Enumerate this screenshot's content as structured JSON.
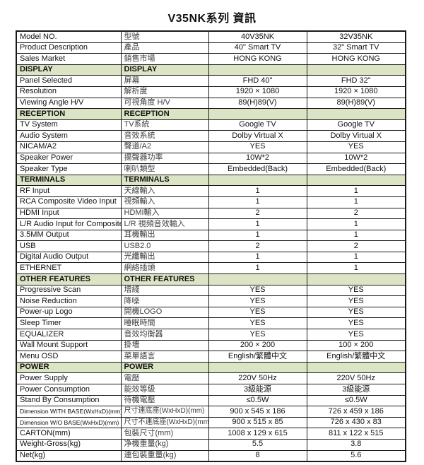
{
  "page": {
    "title": "V35NK系列 資訊"
  },
  "colors": {
    "section_row_background": "#dbe4c5",
    "border": "#1a1a1a",
    "text": "#111111"
  },
  "table": {
    "column_semantics": [
      "english_label",
      "chinese_label",
      "model_40V35NK_value",
      "model_32V35NK_value"
    ],
    "rows": [
      {
        "type": "data",
        "en": "Model NO.",
        "zh": "型號",
        "v40": "40V35NK",
        "v32": "32V35NK"
      },
      {
        "type": "data",
        "en": "Product Description",
        "zh": "產品",
        "v40": "40\" Smart TV",
        "v32": "32\" Smart TV"
      },
      {
        "type": "data",
        "en": "Sales Market",
        "zh": "銷售市場",
        "v40": "HONG KONG",
        "v32": "HONG KONG"
      },
      {
        "type": "section",
        "en": "DISPLAY",
        "zh": "DISPLAY",
        "v40": "",
        "v32": ""
      },
      {
        "type": "data",
        "en": "Panel Selected",
        "zh": "屏幕",
        "v40": "FHD 40\"",
        "v32": "FHD 32\""
      },
      {
        "type": "data",
        "en": "Resolution",
        "zh": "解析度",
        "v40": "1920 × 1080",
        "v32": "1920 × 1080"
      },
      {
        "type": "data",
        "en": "Viewing Angle H/V",
        "zh": "可視角度 H/V",
        "v40": "89(H)89(V)",
        "v32": "89(H)89(V)"
      },
      {
        "type": "section",
        "en": "RECEPTION",
        "zh": "RECEPTION",
        "v40": "",
        "v32": ""
      },
      {
        "type": "data",
        "en": "TV System",
        "zh": "TV系統",
        "v40": "Google TV",
        "v32": "Google TV"
      },
      {
        "type": "data",
        "en": "Audio System",
        "zh": "音效系統",
        "v40": "Dolby Virtual X",
        "v32": "Dolby Virtual X"
      },
      {
        "type": "data",
        "en": "NICAM/A2",
        "zh": "聲道/A2",
        "v40": "YES",
        "v32": "YES"
      },
      {
        "type": "data",
        "en": "Speaker Power",
        "zh": "揚聲器功率",
        "v40": "10W*2",
        "v32": "10W*2"
      },
      {
        "type": "data",
        "en": "Speaker Type",
        "zh": "喇叭類型",
        "v40": "Embedded(Back)",
        "v32": "Embedded(Back)"
      },
      {
        "type": "section",
        "en": "TERMINALS",
        "zh": "TERMINALS",
        "v40": "",
        "v32": ""
      },
      {
        "type": "data",
        "en": "RF Input",
        "zh": "天線輸入",
        "v40": "1",
        "v32": "1"
      },
      {
        "type": "data",
        "en": "RCA Composite Video Input",
        "zh": "視頻輸入",
        "v40": "1",
        "v32": "1"
      },
      {
        "type": "data",
        "en": "HDMI Input",
        "zh": "HDMI輸入",
        "v40": "2",
        "v32": "2"
      },
      {
        "type": "data",
        "en": "L/R Audio Input for Composite",
        "zh": "L/R 視頻音效輸入",
        "v40": "1",
        "v32": "1"
      },
      {
        "type": "data",
        "en": "3.5MM Output",
        "zh": "耳機輸出",
        "v40": "1",
        "v32": "1"
      },
      {
        "type": "data",
        "en": "USB",
        "zh": "USB2.0",
        "v40": "2",
        "v32": "2"
      },
      {
        "type": "data",
        "en": "Digital Audio Output",
        "zh": "光纖輸出",
        "v40": "1",
        "v32": "1"
      },
      {
        "type": "data",
        "en": "ETHERNET",
        "zh": "網絡插頭",
        "v40": "1",
        "v32": "1"
      },
      {
        "type": "section",
        "en": "OTHER FEATURES",
        "zh": "OTHER FEATURES",
        "v40": "",
        "v32": ""
      },
      {
        "type": "data",
        "en": "Progressive Scan",
        "zh": "增綫",
        "v40": "YES",
        "v32": "YES"
      },
      {
        "type": "data",
        "en": "Noise Reduction",
        "zh": "降噪",
        "v40": "YES",
        "v32": "YES"
      },
      {
        "type": "data",
        "en": "Power-up Logo",
        "zh": "開機LOGO",
        "v40": "YES",
        "v32": "YES"
      },
      {
        "type": "data",
        "en": "Sleep Timer",
        "zh": "睡眠時間",
        "v40": "YES",
        "v32": "YES"
      },
      {
        "type": "data",
        "en": "EQUALIZER",
        "zh": "音效均衡器",
        "v40": "YES",
        "v32": "YES"
      },
      {
        "type": "data",
        "en": "Wall Mount Support",
        "zh": "掛墻",
        "v40": "200 × 200",
        "v32": "100 × 200"
      },
      {
        "type": "data",
        "en": "Menu OSD",
        "zh": "菜單語言",
        "v40": "English/繁體中文",
        "v32": "English/繁體中文"
      },
      {
        "type": "section",
        "en": "POWER",
        "zh": "POWER",
        "v40": "",
        "v32": ""
      },
      {
        "type": "data",
        "en": "Power Supply",
        "zh": "電壓",
        "v40": "220V 50Hz",
        "v32": "220V 50Hz"
      },
      {
        "type": "data",
        "en": "Power Consumption",
        "zh": "能效等級",
        "v40": "3級能源",
        "v32": "3級能源"
      },
      {
        "type": "data",
        "en": "Stand By Consumption",
        "zh": "待機電壓",
        "v40": "≤0.5W",
        "v32": "≤0.5W"
      },
      {
        "type": "data",
        "small": true,
        "en": "Dimension WITH BASE(WxHxD)(mm)",
        "zh": "尺寸連底座(WxHxD)(mm)",
        "v40": "900 x 545 x 186",
        "v32": "726 x 459 x 186"
      },
      {
        "type": "data",
        "small": true,
        "en": "Dimension W/O BASE(WxHxD)(mm)",
        "zh": "尺寸不連底座(WxHxD)(mm)",
        "v40": "900 x 515 x 85",
        "v32": "726 x 430 x 83"
      },
      {
        "type": "data",
        "en": "CARTON(mm)",
        "zh": "包裝尺寸(mm)",
        "v40": "1008 x 129 x 615",
        "v32": "811 x 122 x 515"
      },
      {
        "type": "data",
        "en": "Weight-Gross(kg)",
        "zh": "净機重量(kg)",
        "v40": "5.5",
        "v32": "3.8"
      },
      {
        "type": "data",
        "en": "Net(kg)",
        "zh": "連包裝重量(kg)",
        "v40": "8",
        "v32": "5.6"
      }
    ]
  }
}
